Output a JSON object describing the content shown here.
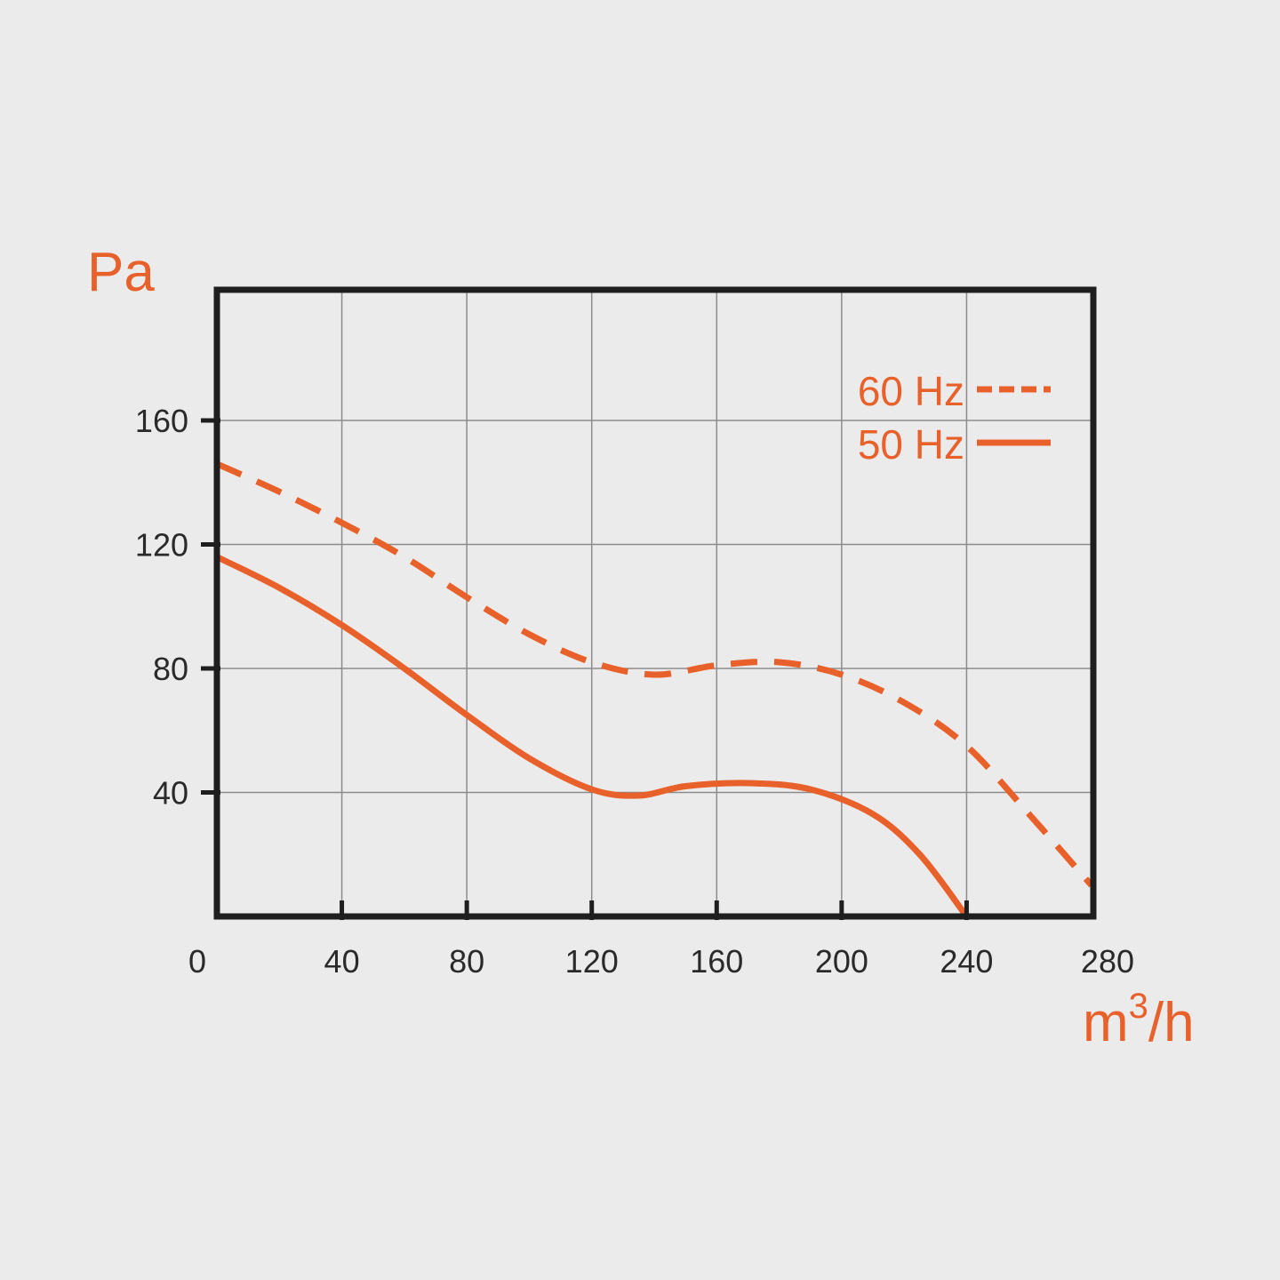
{
  "chart_data": {
    "type": "line",
    "xlabel": "m3/h",
    "xlabel_base": "m",
    "xlabel_sup": "3",
    "xlabel_tail": "/h",
    "ylabel": "Pa",
    "xlim": [
      0,
      280
    ],
    "ylim": [
      0,
      200
    ],
    "x_ticks": [
      0,
      40,
      80,
      120,
      160,
      200,
      240,
      280
    ],
    "y_ticks": [
      40,
      80,
      120,
      160
    ],
    "grid": true,
    "legend_position": "top-right",
    "accent_color": "#e8602a",
    "series": [
      {
        "name": "60 Hz",
        "style": "dashed",
        "color": "#e8602a",
        "x": [
          0,
          20,
          40,
          60,
          80,
          100,
          120,
          140,
          160,
          180,
          200,
          220,
          240,
          260,
          280
        ],
        "y": [
          146,
          137,
          127,
          116,
          103,
          91,
          82,
          78,
          81,
          82,
          78,
          69,
          55,
          33,
          10
        ]
      },
      {
        "name": "50 Hz",
        "style": "solid",
        "color": "#e8602a",
        "x": [
          0,
          20,
          40,
          60,
          80,
          100,
          120,
          135,
          150,
          170,
          190,
          210,
          225,
          240
        ],
        "y": [
          116,
          106,
          94,
          80,
          65,
          51,
          41,
          39,
          42,
          43,
          41,
          33,
          20,
          0
        ]
      }
    ]
  }
}
